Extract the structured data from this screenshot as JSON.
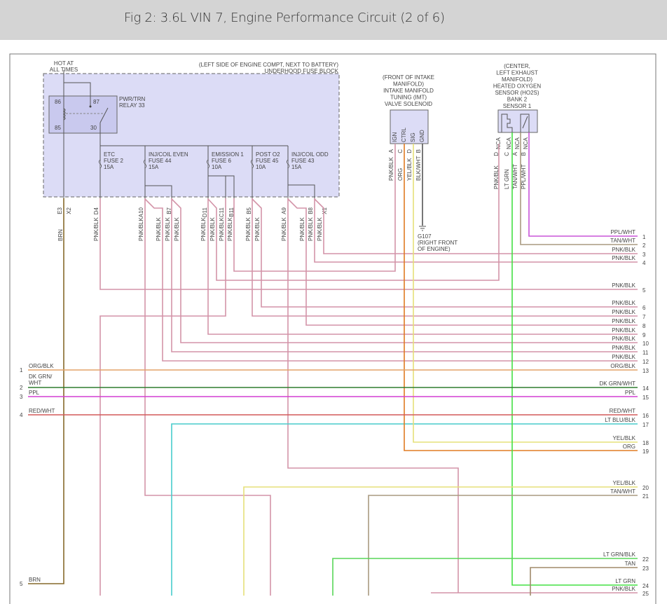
{
  "header": {
    "title": "Fig 2: 3.6L VIN 7, Engine Performance Circuit (2 of 6)"
  },
  "fuse_block": {
    "location": "(LEFT SIDE OF ENGINE COMPT, NEXT TO BATTERY)",
    "name": "UNDERHOOD FUSE BLOCK",
    "hot_line1": "HOT AT",
    "hot_line2": "ALL TIMES",
    "relay": {
      "line1": "PWR/TRN",
      "line2": "RELAY 33",
      "pin86": "86",
      "pin87": "87",
      "pin85": "85",
      "pin30": "30"
    },
    "fuses": [
      {
        "name": "ETC",
        "fuse": "FUSE 2",
        "amp": "15A"
      },
      {
        "name": "INJ/COIL EVEN",
        "fuse": "FUSE 44",
        "amp": "15A"
      },
      {
        "name": "EMISSION 1",
        "fuse": "FUSE 6",
        "amp": "10A"
      },
      {
        "name": "POST O2",
        "fuse": "FUSE 45",
        "amp": "10A"
      },
      {
        "name": "INJ/COIL ODD",
        "fuse": "FUSE 43",
        "amp": "15A"
      }
    ],
    "pins": [
      "E3",
      "X2",
      "D4",
      "A10",
      "B7",
      "D11",
      "C11",
      "B11",
      "B5",
      "A9",
      "B8",
      "X1"
    ],
    "wire_labels": [
      "BRN",
      "PNK/BLK",
      "PNK/BLK",
      "PNK/BLK",
      "PNK/BLK",
      "PNK/BLK",
      "PNK/BLK",
      "PNK/BLK",
      "PNK/BLK",
      "PNK/BLK",
      "PNK/BLK",
      "PNK/BLK",
      "PNK/BLK",
      "PNK/BLK",
      "PNK/BLK",
      "PNK/BLK"
    ]
  },
  "imt": {
    "lines": [
      "(FRONT OF INTAKE",
      "MANIFOLD)",
      "INTAKE MANIFOLD",
      "TUNING (IMT)",
      "VALVE SOLENOID"
    ],
    "pin_names": [
      "IGN",
      "CTRL",
      "SIG",
      "GND"
    ],
    "pin_letters": [
      "A",
      "C",
      "D",
      "B"
    ],
    "wire_labels": [
      "PNK/BLK",
      "ORG",
      "YEL/BLK",
      "BLK/WHT"
    ]
  },
  "ground": {
    "name": "G107",
    "line1": "(RIGHT FRONT",
    "line2": "OF ENGINE)"
  },
  "ho2s": {
    "lines": [
      "(CENTER,",
      "LEFT EXHAUST",
      "MANIFOLD)",
      "HEATED OXYGEN",
      "SENSOR (HO2S)",
      "BANK 2",
      "SENSOR 1"
    ],
    "pin_names": [
      "NCA",
      "NCA",
      "NCA",
      "NCA"
    ],
    "pin_letters": [
      "D",
      "C",
      "A",
      "B"
    ],
    "wire_labels": [
      "PNK/BLK",
      "LT GRN",
      "TAN/WHT",
      "PPL/WHT"
    ]
  },
  "right_rows": [
    {
      "num": "1",
      "label": "PPL/WHT"
    },
    {
      "num": "2",
      "label": "TAN/WHT"
    },
    {
      "num": "3",
      "label": "PNK/BLK"
    },
    {
      "num": "4",
      "label": "PNK/BLK"
    },
    {
      "num": "5",
      "label": "PNK/BLK"
    },
    {
      "num": "6",
      "label": "PNK/BLK"
    },
    {
      "num": "7",
      "label": "PNK/BLK"
    },
    {
      "num": "8",
      "label": "PNK/BLK"
    },
    {
      "num": "9",
      "label": "PNK/BLK"
    },
    {
      "num": "10",
      "label": "PNK/BLK"
    },
    {
      "num": "11",
      "label": "PNK/BLK"
    },
    {
      "num": "12",
      "label": "PNK/BLK"
    },
    {
      "num": "13",
      "label": "ORG/BLK"
    },
    {
      "num": "14",
      "label": "DK GRN/WHT"
    },
    {
      "num": "15",
      "label": "PPL"
    },
    {
      "num": "16",
      "label": "RED/WHT"
    },
    {
      "num": "17",
      "label": "LT BLU/BLK"
    },
    {
      "num": "18",
      "label": "YEL/BLK"
    },
    {
      "num": "19",
      "label": "ORG"
    },
    {
      "num": "20",
      "label": "YEL/BLK"
    },
    {
      "num": "21",
      "label": "TAN/WHT"
    },
    {
      "num": "22",
      "label": "LT GRN/BLK"
    },
    {
      "num": "23",
      "label": "TAN"
    },
    {
      "num": "24",
      "label": "LT GRN"
    },
    {
      "num": "25",
      "label": "PNK/BLK"
    }
  ],
  "left_rows": [
    {
      "num": "1",
      "label": "ORG/BLK"
    },
    {
      "num": "2",
      "label": "DK GRN/",
      "label2": "WHT"
    },
    {
      "num": "3",
      "label": "PPL"
    },
    {
      "num": "4",
      "label": "RED/WHT"
    },
    {
      "num": "5",
      "label": "BRN"
    }
  ],
  "colors": {
    "pnk_blk": "#d394a8",
    "brn": "#86692a",
    "org_blk": "#e3a368",
    "dk_grn_wht": "#2f7d2f",
    "ppl": "#d43fd4",
    "red_wht": "#d45a5a",
    "lt_blu_blk": "#48cccc",
    "yel_blk": "#e6e07a",
    "org": "#e07b22",
    "tan_wht": "#a99a80",
    "lt_grn": "#44e044",
    "lt_grn_blk": "#58d658",
    "tan": "#a08a6a",
    "ppl_wht": "#c855d8",
    "blk_wht": "#555555",
    "fuse_block_fill": "#dcdcf6",
    "relay_fill": "#c9c9ee",
    "header_bg": "#d4d4d4"
  }
}
